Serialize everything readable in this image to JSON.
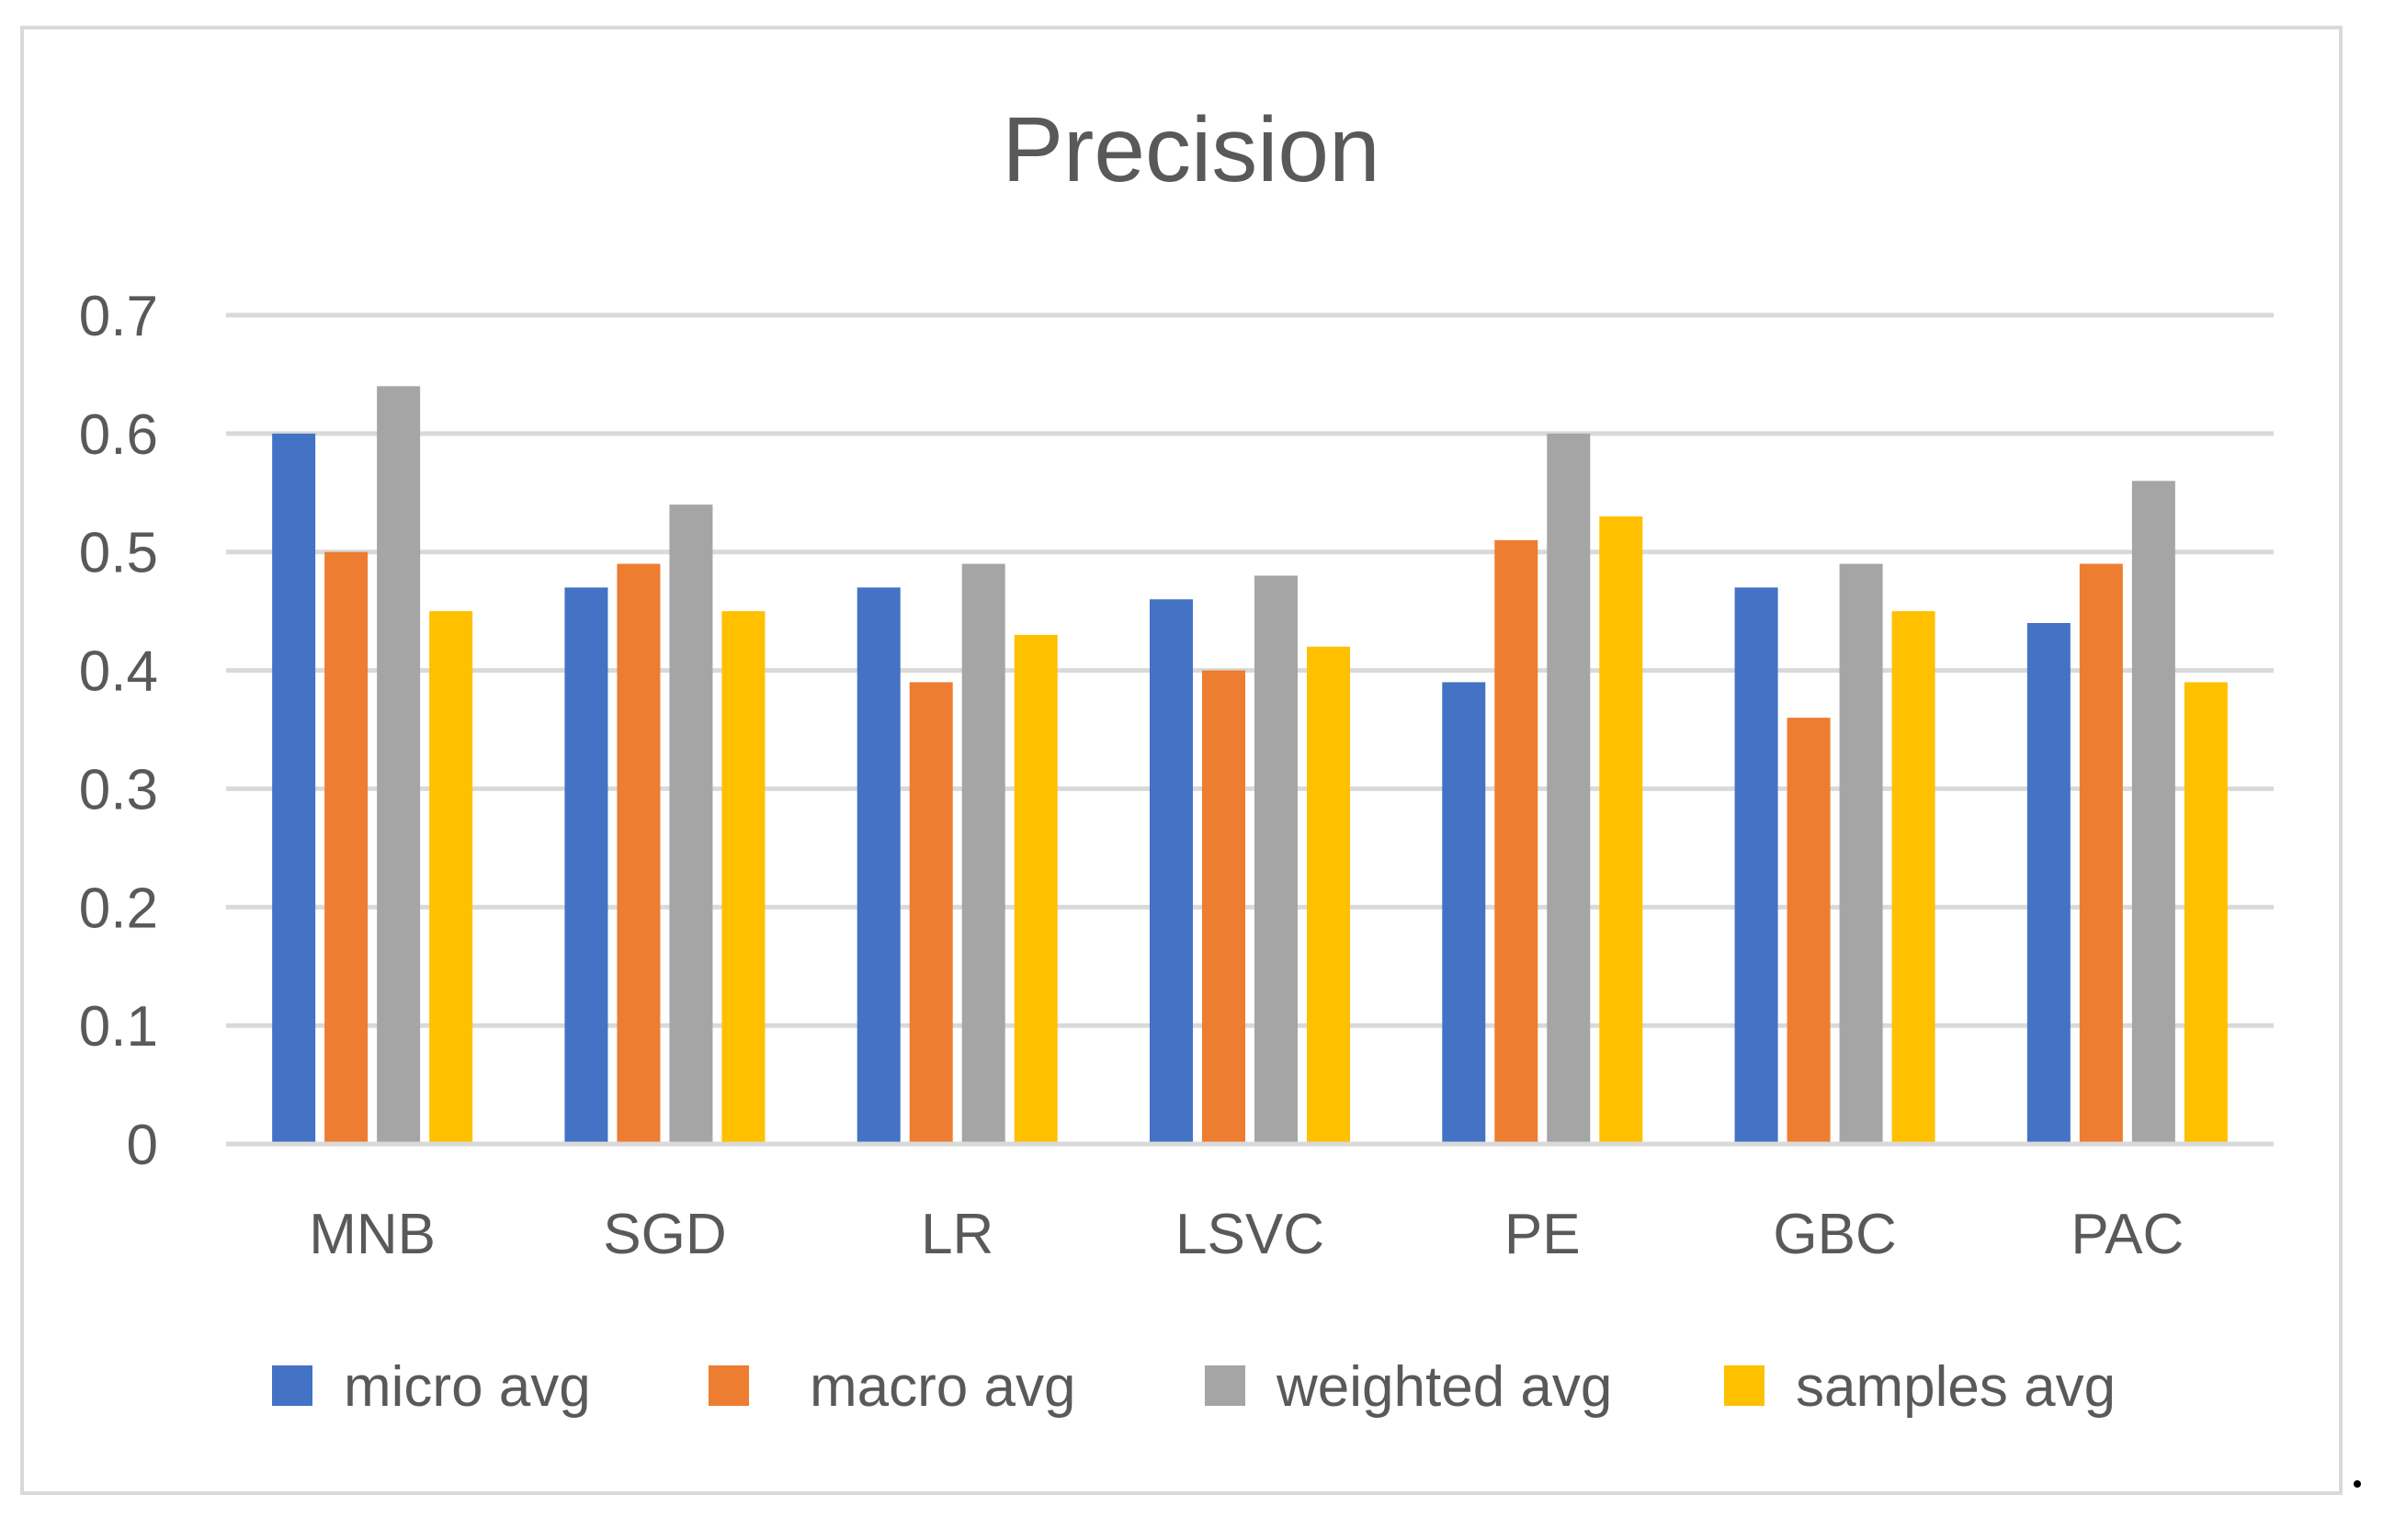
{
  "chart_data": {
    "type": "bar",
    "title": "Precision",
    "xlabel": "",
    "ylabel": "",
    "ylim": [
      0,
      0.7
    ],
    "yticks": [
      "0",
      "0.1",
      "0.2",
      "0.3",
      "0.4",
      "0.5",
      "0.6",
      "0.7"
    ],
    "grid": true,
    "legend_position": "bottom",
    "categories": [
      "MNB",
      "SGD",
      "LR",
      "LSVC",
      "PE",
      "GBC",
      "PAC"
    ],
    "series": [
      {
        "name": "micro avg",
        "color": "#4472c4",
        "values": [
          0.6,
          0.47,
          0.47,
          0.46,
          0.39,
          0.47,
          0.44
        ]
      },
      {
        "name": "macro avg",
        "color": "#ed7d31",
        "values": [
          0.5,
          0.49,
          0.39,
          0.4,
          0.51,
          0.36,
          0.49
        ]
      },
      {
        "name": "weighted avg",
        "color": "#a5a5a5",
        "values": [
          0.64,
          0.54,
          0.49,
          0.48,
          0.6,
          0.49,
          0.56
        ]
      },
      {
        "name": "samples avg",
        "color": "#ffc000",
        "values": [
          0.45,
          0.45,
          0.43,
          0.42,
          0.53,
          0.45,
          0.39
        ]
      }
    ]
  }
}
